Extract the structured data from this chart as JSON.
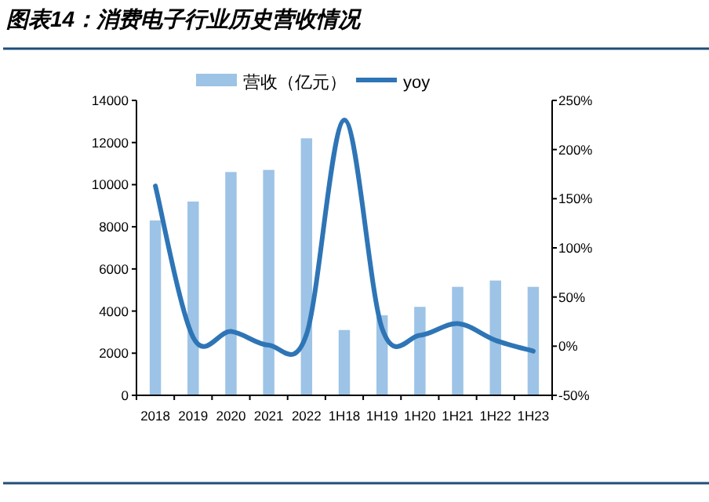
{
  "chart_data": {
    "type": "bar",
    "title": "图表14：消费电子行业历史营收情况",
    "categories": [
      "2018",
      "2019",
      "2020",
      "2021",
      "2022",
      "1H18",
      "1H19",
      "1H20",
      "1H21",
      "1H22",
      "1H23"
    ],
    "series": [
      {
        "name": "营收（亿元）",
        "color": "#9dc3e6",
        "values": [
          8300,
          9200,
          10600,
          10700,
          12200,
          3100,
          3800,
          4200,
          5150,
          5450,
          5150
        ]
      },
      {
        "name": "yoy",
        "type": "line",
        "axis": "y2",
        "color": "#2e75b6",
        "values": [
          163,
          9,
          15,
          1,
          12,
          230,
          18,
          11,
          23,
          6,
          -5
        ]
      }
    ],
    "ylim": [
      0,
      14000
    ],
    "yticks": [
      0,
      2000,
      4000,
      6000,
      8000,
      10000,
      12000,
      14000
    ],
    "y2lim": [
      -50,
      250
    ],
    "y2ticks": [
      {
        "value": -50,
        "label": "-50%"
      },
      {
        "value": 0,
        "label": "0%"
      },
      {
        "value": 50,
        "label": "50%"
      },
      {
        "value": 100,
        "label": "100%"
      },
      {
        "value": 150,
        "label": "150%"
      },
      {
        "value": 200,
        "label": "200%"
      },
      {
        "value": 250,
        "label": "250%"
      }
    ],
    "legend": "top",
    "grid": false,
    "marker": "none",
    "line_style": "solid"
  }
}
